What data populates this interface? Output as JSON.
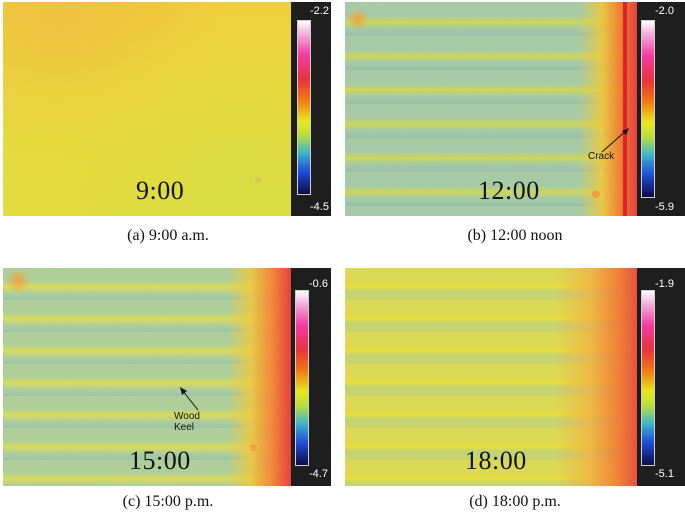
{
  "panels": [
    {
      "id": "a",
      "time": "9:00",
      "caption": "(a) 9:00 a.m.",
      "scale_max": "-2.2",
      "scale_min": "-4.5"
    },
    {
      "id": "b",
      "time": "12:00",
      "caption": "(b) 12:00 noon",
      "scale_max": "-2.0",
      "scale_min": "-5.9",
      "annotation": "Crack"
    },
    {
      "id": "c",
      "time": "15:00",
      "caption": "(c) 15:00 p.m.",
      "scale_max": "-0.6",
      "scale_min": "-4.7",
      "annotation": "Wood Keel"
    },
    {
      "id": "d",
      "time": "18:00",
      "caption": "(d) 18:00 p.m.",
      "scale_max": "-1.9",
      "scale_min": "-5.1"
    }
  ],
  "colors": {
    "yellow": "#e9e13a",
    "yellow_green": "#c9d95a",
    "cyan_green": "#8cc7a8",
    "blue_tint": "#7fb2c9",
    "orange": "#f2a23a",
    "red": "#e8343b",
    "scale_background": "#1e1e1e"
  }
}
